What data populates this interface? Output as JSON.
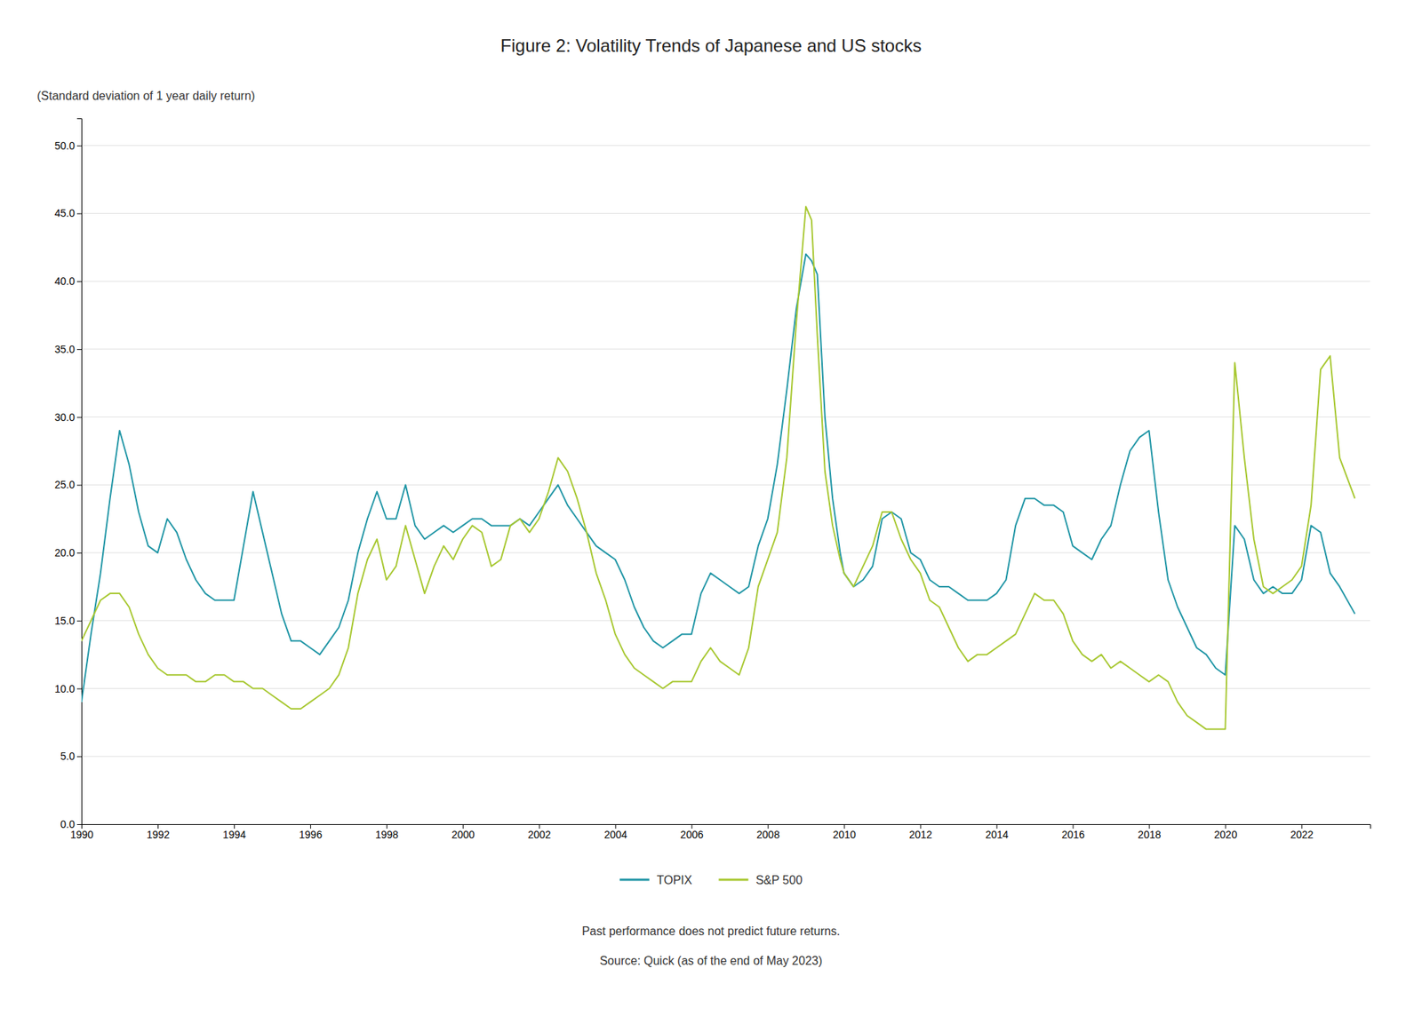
{
  "chart_data": {
    "type": "line",
    "title": "Figure 2: Volatility Trends of Japanese and US stocks",
    "ylabel": "(Standard deviation of 1 year daily return)",
    "annotations": [
      "Past performance does not predict future returns.",
      "Source: Quick (as of the end of May 2023)"
    ],
    "grid": true,
    "legend": "bottom",
    "xlim": [
      1990.0,
      2023.8
    ],
    "xticks": [
      1990,
      1992,
      1994,
      1996,
      1998,
      2000,
      2002,
      2004,
      2006,
      2008,
      2010,
      2012,
      2014,
      2016,
      2018,
      2020,
      2022
    ],
    "ylim": [
      0.0,
      52.0
    ],
    "yticks": [
      {
        "value": 0.0,
        "label": "0.0"
      },
      {
        "value": 5.0,
        "label": "5.0"
      },
      {
        "value": 10.0,
        "label": "10.0"
      },
      {
        "value": 15.0,
        "label": "15.0"
      },
      {
        "value": 20.0,
        "label": "20.0"
      },
      {
        "value": 25.0,
        "label": "25.0"
      },
      {
        "value": 30.0,
        "label": "30.0"
      },
      {
        "value": 35.0,
        "label": "35.0"
      },
      {
        "value": 40.0,
        "label": "40.0"
      },
      {
        "value": 45.0,
        "label": "45.0"
      },
      {
        "value": 50.0,
        "label": "50.0"
      }
    ],
    "x": [
      1990.0,
      1990.25,
      1990.5,
      1990.75,
      1991.0,
      1991.25,
      1991.5,
      1991.75,
      1992.0,
      1992.25,
      1992.5,
      1992.75,
      1993.0,
      1993.25,
      1993.5,
      1993.75,
      1994.0,
      1994.25,
      1994.5,
      1994.75,
      1995.0,
      1995.25,
      1995.5,
      1995.75,
      1996.0,
      1996.25,
      1996.5,
      1996.75,
      1997.0,
      1997.25,
      1997.5,
      1997.75,
      1998.0,
      1998.25,
      1998.5,
      1998.75,
      1999.0,
      1999.25,
      1999.5,
      1999.75,
      2000.0,
      2000.25,
      2000.5,
      2000.75,
      2001.0,
      2001.25,
      2001.5,
      2001.75,
      2002.0,
      2002.25,
      2002.5,
      2002.75,
      2003.0,
      2003.25,
      2003.5,
      2003.75,
      2004.0,
      2004.25,
      2004.5,
      2004.75,
      2005.0,
      2005.25,
      2005.5,
      2005.75,
      2006.0,
      2006.25,
      2006.5,
      2006.75,
      2007.0,
      2007.25,
      2007.5,
      2007.75,
      2008.0,
      2008.25,
      2008.5,
      2008.75,
      2009.0,
      2009.15,
      2009.3,
      2009.5,
      2009.7,
      2009.9,
      2010.0,
      2010.25,
      2010.5,
      2010.75,
      2011.0,
      2011.25,
      2011.5,
      2011.75,
      2012.0,
      2012.25,
      2012.5,
      2012.75,
      2013.0,
      2013.25,
      2013.5,
      2013.75,
      2014.0,
      2014.25,
      2014.5,
      2014.75,
      2015.0,
      2015.25,
      2015.5,
      2015.75,
      2016.0,
      2016.25,
      2016.5,
      2016.75,
      2017.0,
      2017.25,
      2017.5,
      2017.75,
      2018.0,
      2018.25,
      2018.5,
      2018.75,
      2019.0,
      2019.25,
      2019.5,
      2019.75,
      2020.0,
      2020.25,
      2020.5,
      2020.75,
      2021.0,
      2021.25,
      2021.5,
      2021.75,
      2022.0,
      2022.25,
      2022.5,
      2022.75,
      2023.0,
      2023.4
    ],
    "series": [
      {
        "name": "TOPIX",
        "color": "#2196A6",
        "values": [
          9.0,
          14.0,
          18.5,
          24.0,
          29.0,
          26.5,
          23.0,
          20.5,
          20.0,
          22.5,
          21.5,
          19.5,
          18.0,
          17.0,
          16.5,
          16.5,
          16.5,
          20.5,
          24.5,
          21.5,
          18.5,
          15.5,
          13.5,
          13.5,
          13.0,
          12.5,
          13.5,
          14.5,
          16.5,
          20.0,
          22.5,
          24.5,
          22.5,
          22.5,
          25.0,
          22.0,
          21.0,
          21.5,
          22.0,
          21.5,
          22.0,
          22.5,
          22.5,
          22.0,
          22.0,
          22.0,
          22.5,
          22.0,
          23.0,
          24.0,
          25.0,
          23.5,
          22.5,
          21.5,
          20.5,
          20.0,
          19.5,
          18.0,
          16.0,
          14.5,
          13.5,
          13.0,
          13.5,
          14.0,
          14.0,
          17.0,
          18.5,
          18.0,
          17.5,
          17.0,
          17.5,
          20.5,
          22.5,
          26.5,
          32.0,
          38.0,
          42.0,
          41.5,
          40.5,
          30.0,
          24.0,
          20.0,
          18.5,
          17.5,
          18.0,
          19.0,
          22.5,
          23.0,
          22.5,
          20.0,
          19.5,
          18.0,
          17.5,
          17.5,
          17.0,
          16.5,
          16.5,
          16.5,
          17.0,
          18.0,
          22.0,
          24.0,
          24.0,
          23.5,
          23.5,
          23.0,
          20.5,
          20.0,
          19.5,
          21.0,
          22.0,
          25.0,
          27.5,
          28.5,
          29.0,
          23.0,
          18.0,
          16.0,
          14.5,
          13.0,
          12.5,
          11.5,
          11.0,
          22.0,
          21.0,
          18.0,
          17.0,
          17.5,
          17.0,
          17.0,
          18.0,
          22.0,
          21.5,
          18.5,
          17.5,
          15.5
        ]
      },
      {
        "name": "S&P 500",
        "color": "#A8C832",
        "values": [
          13.5,
          15.0,
          16.5,
          17.0,
          17.0,
          16.0,
          14.0,
          12.5,
          11.5,
          11.0,
          11.0,
          11.0,
          10.5,
          10.5,
          11.0,
          11.0,
          10.5,
          10.5,
          10.0,
          10.0,
          9.5,
          9.0,
          8.5,
          8.5,
          9.0,
          9.5,
          10.0,
          11.0,
          13.0,
          17.0,
          19.5,
          21.0,
          18.0,
          19.0,
          22.0,
          19.5,
          17.0,
          19.0,
          20.5,
          19.5,
          21.0,
          22.0,
          21.5,
          19.0,
          19.5,
          22.0,
          22.5,
          21.5,
          22.5,
          24.5,
          27.0,
          26.0,
          24.0,
          21.5,
          18.5,
          16.5,
          14.0,
          12.5,
          11.5,
          11.0,
          10.5,
          10.0,
          10.5,
          10.5,
          10.5,
          12.0,
          13.0,
          12.0,
          11.5,
          11.0,
          13.0,
          17.5,
          19.5,
          21.5,
          27.0,
          37.0,
          45.5,
          44.5,
          36.0,
          26.0,
          22.0,
          19.5,
          18.5,
          17.5,
          19.0,
          20.5,
          23.0,
          23.0,
          21.0,
          19.5,
          18.5,
          16.5,
          16.0,
          14.5,
          13.0,
          12.0,
          12.5,
          12.5,
          13.0,
          13.5,
          14.0,
          15.5,
          17.0,
          16.5,
          16.5,
          15.5,
          13.5,
          12.5,
          12.0,
          12.5,
          11.5,
          12.0,
          11.5,
          11.0,
          10.5,
          11.0,
          10.5,
          9.0,
          8.0,
          7.5,
          7.0,
          7.0,
          7.0,
          34.0,
          27.0,
          21.0,
          17.5,
          17.0,
          17.5,
          18.0,
          19.0,
          23.5,
          33.5,
          34.5,
          27.0,
          24.0
        ]
      }
    ]
  }
}
